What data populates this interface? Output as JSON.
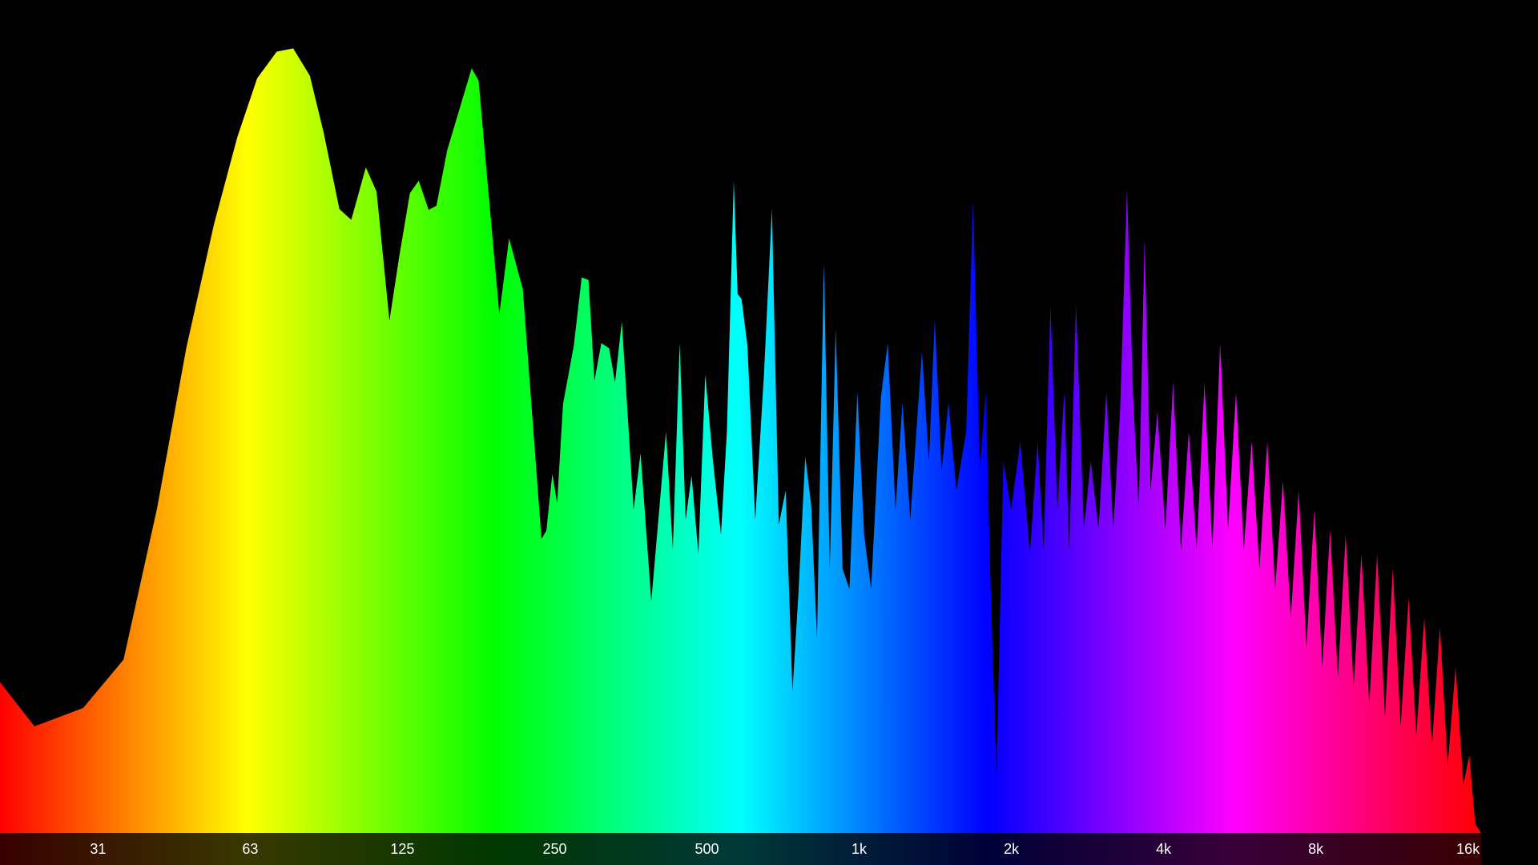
{
  "chart_data": {
    "type": "area",
    "xscale": "log",
    "xlim": [
      20,
      22000
    ],
    "ylim": [
      0,
      100
    ],
    "xticks": [
      {
        "value": 31.25,
        "label": "31"
      },
      {
        "value": 62.5,
        "label": "63"
      },
      125,
      250,
      500,
      {
        "value": 1000,
        "label": "1k"
      },
      {
        "value": 2000,
        "label": "2k"
      },
      {
        "value": 4000,
        "label": "4k"
      },
      {
        "value": 8000,
        "label": "8k"
      },
      {
        "value": 16000,
        "label": "16k"
      }
    ],
    "gradient": [
      "#ff0000",
      "#ffff00",
      "#00ff00",
      "#00ffff",
      "#0000ff",
      "#ff00ff",
      "#ff0000"
    ],
    "x": [
      20,
      23.4,
      29.2,
      35.1,
      40.9,
      46.7,
      53.0,
      58.9,
      64.5,
      70.5,
      76.0,
      82.0,
      87.3,
      93.8,
      99.0,
      105.8,
      111.1,
      117.8,
      123.1,
      129.3,
      134.6,
      140.8,
      145.9,
      153.3,
      171.3,
      176.8,
      184.1,
      194.3,
      203.1,
      216.2,
      235.4,
      240.7,
      247.3,
      252.8,
      259.7,
      272.7,
      282.7,
      291.6,
      299.6,
      309.1,
      320.3,
      329.0,
      339.4,
      358.1,
      369.6,
      388.1,
      415.0,
      428.1,
      441.7,
      453.8,
      466.2,
      480.9,
      496.2,
      514.1,
      533.0,
      547.6,
      565.0,
      575.0,
      585.4,
      601.3,
      623.0,
      648.5,
      672.2,
      693.6,
      715.6,
      738.2,
      758.4,
      782.4,
      803.8,
      825.4,
      851.6,
      874.8,
      898.7,
      927.4,
      956.7,
      991.7,
      1023,
      1056,
      1104,
      1139,
      1180,
      1218,
      1262,
      1331,
      1374,
      1411,
      1456,
      1502,
      1557,
      1628,
      1680,
      1733,
      1779,
      1820,
      1869,
      1928,
      1998,
      2082,
      2176,
      2254,
      2316,
      2390,
      2466,
      2544,
      2602,
      2684,
      2782,
      2870,
      2974,
      3082,
      3180,
      3280,
      3386,
      3478,
      3572,
      3668,
      3768,
      3888,
      4032,
      4176,
      4328,
      4486,
      4650,
      4818,
      4994,
      5174,
      5364,
      5562,
      5762,
      5972,
      6188,
      6414,
      6646,
      6888,
      7138,
      7398,
      7664,
      7946,
      8238,
      8534,
      8846,
      9164,
      9502,
      9844,
      10204,
      10572,
      10960,
      11356,
      11772,
      12204,
      12642,
      13104,
      13576,
      14074,
      14582,
      15118,
      15662,
      16090,
      16530,
      16978
    ],
    "values": [
      18.1,
      12.8,
      15.0,
      20.8,
      39.0,
      58.2,
      73.1,
      83.5,
      90.6,
      93.8,
      94.2,
      90.9,
      84.1,
      74.9,
      73.6,
      79.9,
      77.0,
      61.5,
      69.1,
      76.8,
      78.3,
      74.8,
      75.3,
      82.0,
      91.8,
      90.3,
      78.2,
      62.3,
      71.4,
      65.3,
      35.3,
      36.3,
      43.1,
      39.6,
      51.5,
      58.5,
      66.7,
      66.4,
      54.3,
      58.8,
      58.2,
      54.1,
      61.4,
      38.8,
      45.6,
      27.8,
      48.2,
      34.0,
      58.8,
      37.6,
      42.9,
      33.5,
      55.0,
      44.6,
      35.8,
      48.2,
      78.3,
      64.7,
      64.1,
      58.5,
      37.6,
      55.2,
      75.0,
      37.0,
      41.1,
      17.0,
      28.7,
      45.2,
      39.3,
      23.4,
      68.4,
      31.7,
      60.5,
      31.7,
      29.3,
      52.9,
      35.8,
      29.3,
      52.3,
      58.8,
      38.8,
      51.7,
      37.6,
      57.8,
      44.6,
      61.7,
      43.5,
      51.7,
      41.1,
      48.2,
      75.9,
      43.5,
      52.9,
      29.3,
      6.9,
      44.6,
      38.8,
      47.0,
      33.5,
      47.0,
      34.0,
      63.3,
      38.8,
      52.9,
      34.0,
      63.5,
      36.4,
      44.6,
      36.4,
      52.9,
      36.4,
      50.5,
      77.3,
      52.9,
      38.8,
      71.4,
      41.1,
      50.5,
      36.4,
      54.1,
      34.0,
      48.2,
      34.0,
      54.1,
      34.0,
      58.8,
      36.4,
      52.9,
      34.0,
      47.0,
      31.7,
      47.0,
      29.3,
      42.3,
      25.8,
      41.1,
      22.3,
      38.8,
      19.9,
      36.4,
      18.7,
      35.8,
      17.5,
      33.5,
      15.2,
      33.5,
      14.0,
      31.7,
      12.8,
      28.2,
      11.7,
      25.8,
      10.5,
      24.7,
      8.1,
      19.9,
      5.8,
      9.3,
      1.1,
      0
    ]
  }
}
